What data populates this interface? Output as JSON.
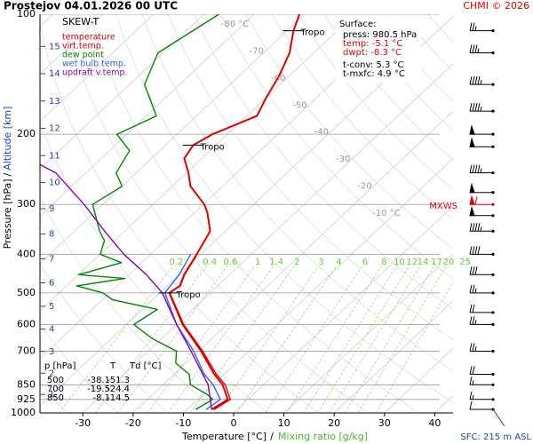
{
  "chart_data": {
    "type": "skewt",
    "title": "Prostejov   04.01.2026 00 UTC",
    "credit": "CHMI © 2026",
    "legend_title": "SKEW-T",
    "x_label": "Temperature [°C]",
    "x_label_sep": "/",
    "x_label2": "Mixing ratio [g/kg]",
    "y_label": "Pressure [hPa]",
    "y_label_sep": "/",
    "y_label2": "Altitude [km]",
    "sfc_label": "SFC: 215 m ASL",
    "yticks": [
      100,
      200,
      300,
      400,
      500,
      600,
      700,
      850,
      925,
      1000
    ],
    "ylim": [
      1000,
      100
    ],
    "log_y": true,
    "grid": true,
    "xticks": [
      -30,
      -20,
      -10,
      0,
      10,
      20,
      30,
      40
    ],
    "altitude_ticks": [
      1,
      2,
      3,
      4,
      5,
      6,
      7,
      8,
      9,
      10,
      11,
      12,
      13,
      14,
      15
    ],
    "isotherm_labels": [
      {
        "value": -80,
        "label": "-80 °C"
      },
      -70,
      -60,
      -50,
      -40,
      -30,
      -20,
      {
        "value": -10,
        "label": "-10 °C"
      }
    ],
    "mixing_ratios": [
      0.2,
      0.4,
      0.6,
      1,
      1.4,
      2,
      3,
      4,
      6,
      8,
      10,
      12,
      14,
      17,
      20,
      25
    ],
    "series": [
      {
        "name": "temperature",
        "color": "#e00000",
        "pressure": [
          980,
          925,
          850,
          800,
          700,
          600,
          500,
          480,
          450,
          400,
          350,
          315,
          300,
          270,
          250,
          230,
          213,
          200,
          180,
          162,
          143,
          125,
          110,
          100
        ],
        "values": [
          -5.1,
          -4,
          -8.1,
          -12,
          -19.5,
          -28.8,
          -38.1,
          -37.5,
          -39,
          -40.8,
          -43,
          -47.4,
          -49.8,
          -56.4,
          -59.6,
          -63.5,
          -64.5,
          -63,
          -58,
          -60,
          -62,
          -64.8,
          -68.7,
          -71
        ]
      },
      {
        "name": "virt.temp.",
        "color": "#e00000",
        "pressure": [
          980,
          925,
          850,
          800,
          700,
          600,
          500,
          480,
          450,
          400
        ],
        "values": [
          -4.6,
          -3.5,
          -7.6,
          -11.6,
          -19.2,
          -28.6,
          -38,
          -37.4,
          -38.9,
          -40.7
        ]
      },
      {
        "name": "dew point",
        "color": "#008800",
        "pressure": [
          980,
          925,
          900,
          850,
          800,
          750,
          700,
          650,
          600,
          550,
          520,
          500,
          480,
          460,
          450,
          420,
          400,
          370,
          350,
          300,
          270,
          250,
          220,
          200,
          180,
          150,
          125,
          100
        ],
        "values": [
          -8.3,
          -7,
          -9,
          -14.5,
          -17,
          -22,
          -24.4,
          -32,
          -38.5,
          -37,
          -48,
          -51.3,
          -58,
          -50,
          -60,
          -54,
          -60,
          -62,
          -65,
          -72,
          -70,
          -74,
          -76,
          -82,
          -78,
          -87,
          -91,
          -87
        ]
      },
      {
        "name": "wet bulb temp.",
        "color": "#3060ff",
        "pressure": [
          980,
          925,
          850,
          800,
          700,
          600,
          500,
          450,
          400
        ],
        "values": [
          -6.2,
          -5.5,
          -10,
          -14,
          -21,
          -30,
          -39,
          -40,
          -42
        ]
      },
      {
        "name": "updraft v.temp.",
        "color": "#9000b0",
        "pressure": [
          980,
          850,
          700,
          600,
          500,
          450,
          400,
          350,
          300,
          250,
          238
        ],
        "values": [
          -5.1,
          -11,
          -21.5,
          -30,
          -39.5,
          -46.5,
          -55.3,
          -64,
          -73.7,
          -86,
          -91
        ]
      }
    ],
    "tropopause": [
      {
        "pressure": 110,
        "label": "Tropo"
      },
      {
        "pressure": 213,
        "label": "Tropo"
      },
      {
        "pressure": 500,
        "label": "Tropo"
      }
    ],
    "max_wind": {
      "label": "MXWS",
      "pressure": 300
    },
    "winds": {
      "pressure": [
        110,
        125,
        150,
        175,
        200,
        215,
        250,
        280,
        300,
        320,
        350,
        400,
        450,
        500,
        560,
        600,
        700,
        800,
        850,
        925,
        980
      ],
      "speed": [
        25,
        35,
        45,
        45,
        50,
        50,
        45,
        50,
        60,
        50,
        45,
        40,
        30,
        25,
        20,
        25,
        25,
        20,
        15,
        15,
        10
      ]
    },
    "surface": {
      "title": "Surface:",
      "lines": [
        "press: 980.5 hPa",
        "temp: -5.1 °C",
        "dwpt: -8.3 °C"
      ],
      "lines2": [
        "t-conv: 5.3 °C",
        "t-mxfc: 4.9 °C"
      ]
    },
    "table": {
      "header": [
        "p [hPa]",
        "T",
        "Td [°C]"
      ],
      "rows": [
        [
          500,
          -38.1,
          -51.3
        ],
        [
          700,
          -19.5,
          -24.4
        ],
        [
          850,
          -8.1,
          -14.5
        ]
      ]
    }
  }
}
